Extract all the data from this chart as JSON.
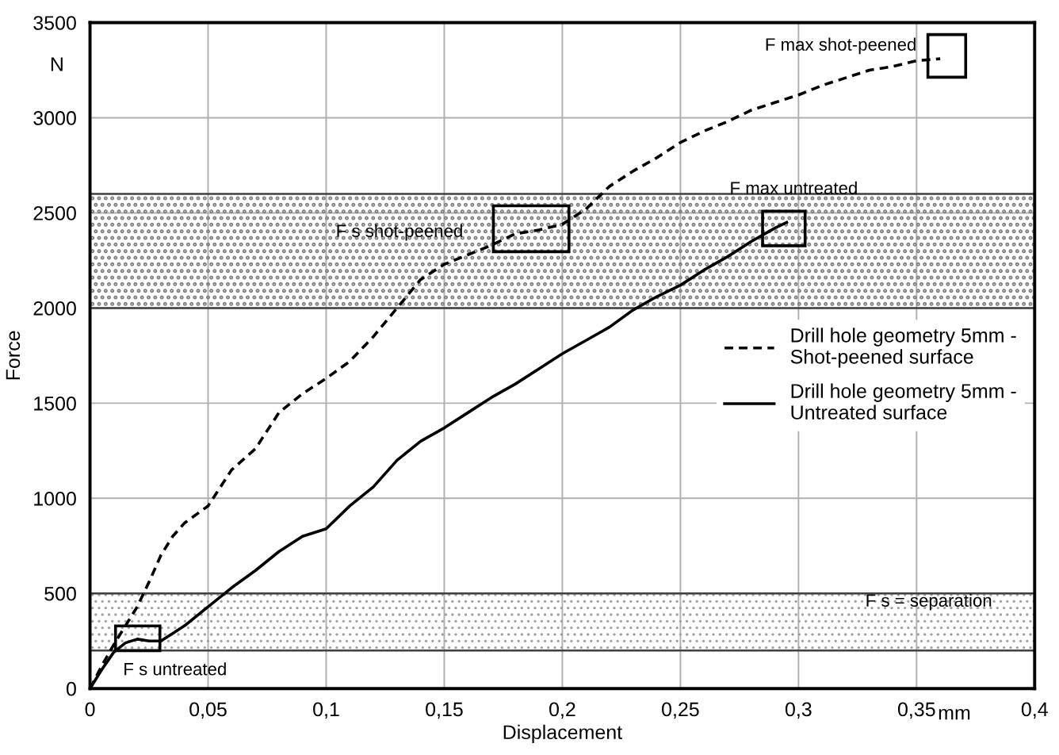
{
  "chart_data": {
    "type": "line",
    "xlabel": "Displacement",
    "ylabel": "Force",
    "xlim": [
      0,
      0.4
    ],
    "ylim": [
      0,
      3500
    ],
    "xticks": [
      0,
      {
        "value": 0.05,
        "label": "0,05"
      },
      {
        "value": 0.1,
        "label": "0,1"
      },
      {
        "value": 0.15,
        "label": "0,15"
      },
      {
        "value": 0.2,
        "label": "0,2"
      },
      {
        "value": 0.25,
        "label": "0,25"
      },
      {
        "value": 0.3,
        "label": "0,3"
      },
      {
        "value": 0.35,
        "label": "0,35"
      },
      {
        "value": 0.4,
        "label": "0,4"
      }
    ],
    "yticks": [
      0,
      500,
      1000,
      1500,
      2000,
      2500,
      3000,
      3500
    ],
    "grid": true,
    "legend": "right",
    "marker": "none",
    "series": [
      {
        "name": "Drill hole geometry 5mm -\nShot-peened surface",
        "color": "#000000",
        "line_style": "dashed",
        "x": [
          0,
          0.005,
          0.01,
          0.015,
          0.02,
          0.025,
          0.03,
          0.035,
          0.04,
          0.05,
          0.06,
          0.07,
          0.08,
          0.09,
          0.1,
          0.11,
          0.12,
          0.13,
          0.14,
          0.15,
          0.16,
          0.17,
          0.18,
          0.19,
          0.2,
          0.21,
          0.22,
          0.23,
          0.24,
          0.25,
          0.26,
          0.27,
          0.28,
          0.29,
          0.3,
          0.31,
          0.32,
          0.33,
          0.34,
          0.35,
          0.36
        ],
        "values": [
          0,
          120,
          230,
          330,
          430,
          560,
          700,
          800,
          870,
          960,
          1150,
          1260,
          1450,
          1550,
          1630,
          1720,
          1850,
          2000,
          2150,
          2230,
          2280,
          2330,
          2390,
          2410,
          2440,
          2520,
          2640,
          2720,
          2790,
          2870,
          2930,
          2980,
          3040,
          3080,
          3120,
          3170,
          3210,
          3250,
          3270,
          3300,
          3310
        ]
      },
      {
        "name": "Drill hole geometry 5mm -\nUntreated surface",
        "color": "#000000",
        "line_style": "solid",
        "x": [
          0,
          0.005,
          0.01,
          0.015,
          0.02,
          0.025,
          0.03,
          0.035,
          0.04,
          0.05,
          0.06,
          0.07,
          0.08,
          0.09,
          0.1,
          0.11,
          0.12,
          0.13,
          0.14,
          0.15,
          0.16,
          0.17,
          0.18,
          0.19,
          0.2,
          0.21,
          0.22,
          0.23,
          0.24,
          0.25,
          0.26,
          0.27,
          0.28,
          0.29,
          0.295
        ],
        "values": [
          0,
          100,
          190,
          240,
          260,
          250,
          250,
          290,
          330,
          430,
          530,
          620,
          720,
          800,
          840,
          960,
          1060,
          1200,
          1300,
          1370,
          1450,
          1530,
          1600,
          1680,
          1760,
          1830,
          1900,
          1990,
          2060,
          2120,
          2200,
          2270,
          2350,
          2420,
          2450
        ]
      }
    ],
    "bands": [
      {
        "axis": "y",
        "from": 2000,
        "to": 2600,
        "color": "#808080"
      },
      {
        "axis": "y",
        "from": 200,
        "to": 500,
        "color": "#a0a0a0"
      }
    ],
    "annotations": [
      "F max shot-peened",
      "F max untreated",
      "F s shot-peened",
      "F s untreated",
      "F s = separation",
      "mm",
      "N"
    ]
  }
}
